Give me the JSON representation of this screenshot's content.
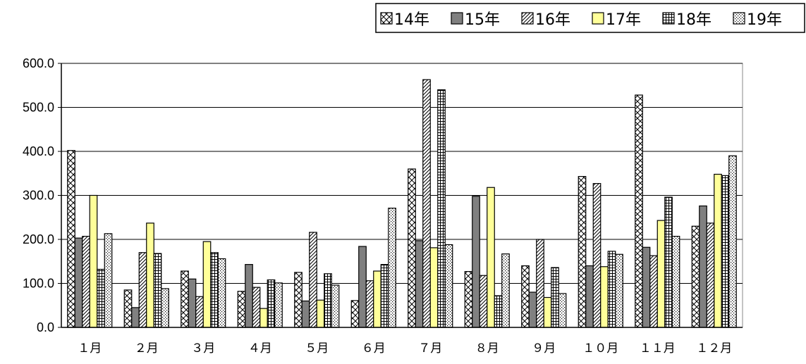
{
  "chart_data": {
    "type": "bar",
    "categories": [
      "1月",
      "2月",
      "3月",
      "4月",
      "5月",
      "6月",
      "7月",
      "8月",
      "9月",
      "10月",
      "11月",
      "12月"
    ],
    "category_display": [
      "１月",
      "２月",
      "３月",
      "４月",
      "５月",
      "６月",
      "７月",
      "８月",
      "９月",
      "１０月",
      "１１月",
      "１２月"
    ],
    "series": [
      {
        "name": "14年",
        "pattern": "crosshatch",
        "color": "#ffffff",
        "values": [
          402,
          85,
          128,
          82,
          125,
          61,
          360,
          127,
          140,
          343,
          528,
          230
        ]
      },
      {
        "name": "15年",
        "pattern": "solid",
        "color": "#808080",
        "values": [
          203,
          45,
          110,
          143,
          60,
          184,
          197,
          298,
          80,
          140,
          182,
          276
        ]
      },
      {
        "name": "16年",
        "pattern": "diagonal",
        "color": "#ffffff",
        "values": [
          207,
          170,
          70,
          91,
          216,
          106,
          563,
          118,
          200,
          327,
          163,
          237
        ]
      },
      {
        "name": "17年",
        "pattern": "solid",
        "color": "#ffff99",
        "values": [
          300,
          237,
          195,
          43,
          62,
          128,
          181,
          318,
          68,
          138,
          243,
          348
        ]
      },
      {
        "name": "18年",
        "pattern": "grid",
        "color": "#ffffff",
        "values": [
          132,
          168,
          170,
          108,
          122,
          143,
          540,
          72,
          136,
          173,
          296,
          345
        ]
      },
      {
        "name": "19年",
        "pattern": "dots",
        "color": "#ffffff",
        "values": [
          213,
          88,
          156,
          101,
          96,
          271,
          188,
          167,
          77,
          166,
          207,
          390
        ]
      }
    ],
    "yticks": [
      "0.0",
      "100.0",
      "200.0",
      "300.0",
      "400.0",
      "500.0",
      "600.0"
    ],
    "ylim": [
      0,
      600
    ],
    "grid": true,
    "legend_position": "top-right"
  }
}
